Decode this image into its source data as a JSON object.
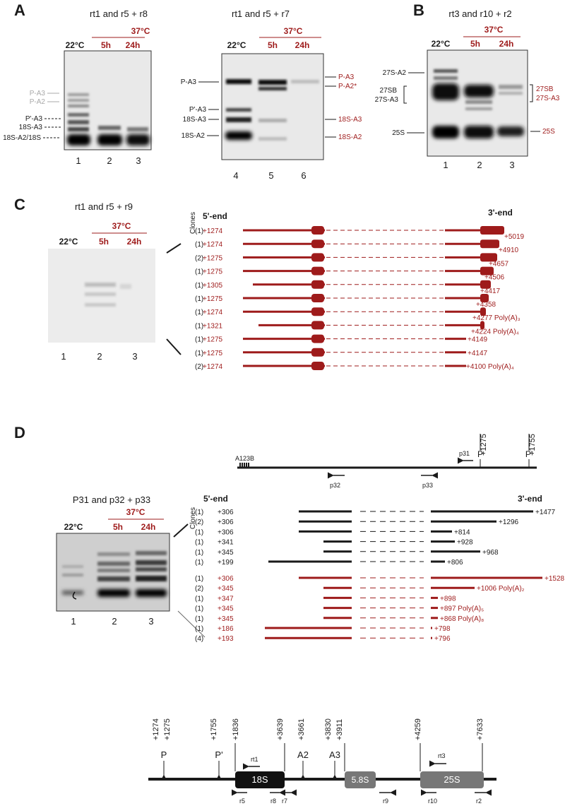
{
  "colors": {
    "red": "#9e1b1b",
    "black": "#1a1a1a",
    "gray": "#a8a8a8",
    "gel_bg": "#e9e9e9",
    "box_gray": "#777777"
  },
  "panel_letters": {
    "A": "A",
    "B": "B",
    "C": "C",
    "D": "D"
  },
  "gels": {
    "a1": {
      "title": "rt1 and r5 + r8",
      "temp_ctrl": "22°C",
      "temp_heat": "37°C",
      "t1": "5h",
      "t2": "24h",
      "left_labels": [
        "P-A3",
        "P-A2",
        "P'-A3",
        "18S-A3",
        "18S-A2/18S"
      ],
      "lanes": [
        "1",
        "2",
        "3"
      ]
    },
    "a2": {
      "title": "rt1 and r5 + r7",
      "temp_ctrl": "22°C",
      "temp_heat": "37°C",
      "t1": "5h",
      "t2": "24h",
      "left_labels": [
        "P-A3",
        "P'-A3",
        "18S-A3",
        "18S-A2"
      ],
      "right_labels": [
        "P-A3",
        "P-A2*",
        "18S-A3",
        "18S-A2"
      ],
      "lanes": [
        "4",
        "5",
        "6"
      ]
    },
    "b": {
      "title": "rt3 and r10 + r2",
      "temp_ctrl": "22°C",
      "temp_heat": "37°C",
      "t1": "5h",
      "t2": "24h",
      "left_labels": [
        "27S-A2",
        "27SB",
        "27S-A3",
        "25S"
      ],
      "right_labels": [
        "27SB",
        "27S-A3",
        "25S"
      ],
      "lanes": [
        "1",
        "2",
        "3"
      ]
    },
    "c": {
      "title": "rt1 and r5 + r9",
      "temp_ctrl": "22°C",
      "temp_heat": "37°C",
      "t1": "5h",
      "t2": "24h",
      "lanes": [
        "1",
        "2",
        "3"
      ]
    },
    "d": {
      "title": "P31 and p32 + p33",
      "temp_ctrl": "22°C",
      "temp_heat": "37°C",
      "t1": "5h",
      "t2": "24h",
      "lanes": [
        "1",
        "2",
        "3"
      ]
    }
  },
  "clones_c": {
    "clones_label": "Clones",
    "five_end": "5'-end",
    "three_end": "3'-end",
    "rows": [
      {
        "n": "(1)",
        "s": "+1274",
        "e": "+5019"
      },
      {
        "n": "(1)",
        "s": "+1274",
        "e": "+4910"
      },
      {
        "n": "(2)",
        "s": "+1275",
        "e": "+4657"
      },
      {
        "n": "(1)",
        "s": "+1275",
        "e": "+4506"
      },
      {
        "n": "(1)",
        "s": "+1305",
        "e": "+4417"
      },
      {
        "n": "(1)",
        "s": "+1275",
        "e": "+4358"
      },
      {
        "n": "(1)",
        "s": "+1274",
        "e": "+4277 Poly(A)₃"
      },
      {
        "n": "(1)",
        "s": "+1321",
        "e": "+4224 Poly(A)₄"
      },
      {
        "n": "(1)",
        "s": "+1275",
        "e": "+4149"
      },
      {
        "n": "(1)",
        "s": "+1275",
        "e": "+4147"
      },
      {
        "n": "(2)",
        "s": "+1274",
        "e": "+4100 Poly(A)₄"
      }
    ]
  },
  "map_d": {
    "a_boxes": "A123B",
    "p31": "p31",
    "p32": "p32",
    "p33": "p33",
    "P": "P",
    "Pp": "P'",
    "pos_p": "+1275",
    "pos_pp": "+1755"
  },
  "clones_d": {
    "clones_label": "Clones",
    "five_end": "5'-end",
    "three_end": "3'-end",
    "black_rows": [
      {
        "n": "(1)",
        "s": "+306",
        "e": "+1477"
      },
      {
        "n": "(2)",
        "s": "+306",
        "e": "+1296"
      },
      {
        "n": "(1)",
        "s": "+306",
        "e": "+814"
      },
      {
        "n": "(1)",
        "s": "+341",
        "e": "+928"
      },
      {
        "n": "(1)",
        "s": "+345",
        "e": "+968"
      },
      {
        "n": "(1)",
        "s": "+199",
        "e": "+806"
      }
    ],
    "red_rows": [
      {
        "n": "(1)",
        "s": "+306",
        "e": "+1528"
      },
      {
        "n": "(2)",
        "s": "+345",
        "e": "+1006 Poly(A)₂"
      },
      {
        "n": "(1)",
        "s": "+347",
        "e": "+898"
      },
      {
        "n": "(1)",
        "s": "+345",
        "e": "+897 Poly(A)₅"
      },
      {
        "n": "(1)",
        "s": "+345",
        "e": "+868 Poly(A)₈"
      },
      {
        "n": "(1)",
        "s": "+186",
        "e": "+798"
      },
      {
        "n": "(4)",
        "s": "+193",
        "e": "+796"
      }
    ]
  },
  "bottom_map": {
    "positions": [
      "+1274",
      "+1275",
      "+1755",
      "+1836",
      "+3639",
      "+3661",
      "+3830",
      "+3911",
      "+4259",
      "+7633"
    ],
    "sites": [
      "P",
      "P'",
      "A2",
      "A3"
    ],
    "boxes": [
      "18S",
      "5.8S",
      "25S"
    ],
    "primers_top": [
      "rt1",
      "rt3"
    ],
    "primers_bottom": [
      "r5",
      "r8",
      "r7",
      "r9",
      "r10",
      "r2"
    ]
  }
}
